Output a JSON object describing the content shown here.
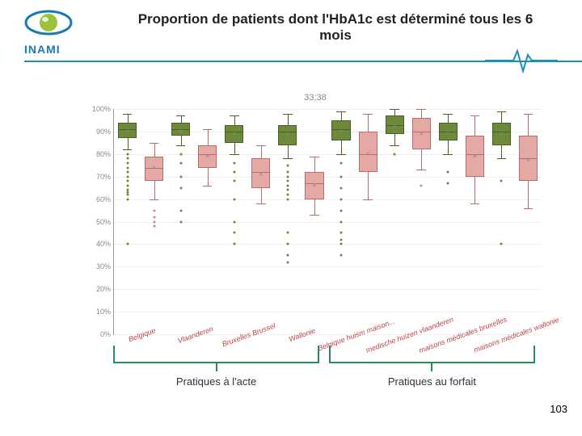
{
  "header": {
    "logo_text": "INAMI",
    "title": "Proportion de patients dont l'HbA1c est déterminé tous les 6 mois"
  },
  "chart": {
    "subtitle": "33;38",
    "type": "boxplot",
    "ylim": [
      0,
      100
    ],
    "ytick_step": 10,
    "ytick_suffix": "%",
    "background_color": "#ffffff",
    "grid_color": "#eeeeee",
    "axis_color": "#999999",
    "label_fontsize": 9,
    "label_color": "#bb4444",
    "colors": {
      "green_fill": "#6d8a3a",
      "green_border": "#4a5f26",
      "pink_fill": "#e4a9a4",
      "pink_border": "#b96b68",
      "outlier": "#6d8a3a",
      "outlier_pink": "#c88",
      "mean_marker": "#888888"
    },
    "categories": [
      "Belgique",
      "",
      "Vlaanderen",
      "",
      "Bruxelles Brussel",
      "",
      "Wallonie",
      "",
      "Belgique huism maison...",
      "",
      "medische huizen vlaanderen",
      "",
      "maisons médicales bruxelles",
      "",
      "maisons médicales wallonie",
      ""
    ],
    "series": [
      {
        "x": 0,
        "color": "green",
        "q1": 87,
        "median": 91,
        "q3": 94,
        "low": 82,
        "high": 98,
        "mean": 90,
        "outliers": [
          80,
          78,
          76,
          74,
          72,
          70,
          68,
          66,
          64,
          63,
          62,
          60,
          40
        ]
      },
      {
        "x": 1,
        "color": "pink",
        "q1": 68,
        "median": 74,
        "q3": 79,
        "low": 60,
        "high": 85,
        "mean": 74,
        "outliers": [
          55,
          52,
          50,
          48
        ]
      },
      {
        "x": 2,
        "color": "green",
        "q1": 88,
        "median": 91,
        "q3": 94,
        "low": 84,
        "high": 97,
        "mean": 90,
        "outliers": [
          80,
          76,
          70,
          65,
          55,
          50
        ]
      },
      {
        "x": 3,
        "color": "pink",
        "q1": 74,
        "median": 80,
        "q3": 84,
        "low": 66,
        "high": 91,
        "mean": 79,
        "outliers": []
      },
      {
        "x": 4,
        "color": "green",
        "q1": 85,
        "median": 90,
        "q3": 93,
        "low": 80,
        "high": 97,
        "mean": 89,
        "outliers": [
          76,
          72,
          68,
          60,
          50,
          45,
          40
        ]
      },
      {
        "x": 5,
        "color": "pink",
        "q1": 65,
        "median": 72,
        "q3": 78,
        "low": 58,
        "high": 84,
        "mean": 71,
        "outliers": []
      },
      {
        "x": 6,
        "color": "green",
        "q1": 84,
        "median": 90,
        "q3": 93,
        "low": 78,
        "high": 98,
        "mean": 88,
        "outliers": [
          75,
          72,
          70,
          68,
          66,
          64,
          62,
          60,
          45,
          40,
          35,
          32
        ]
      },
      {
        "x": 7,
        "color": "pink",
        "q1": 60,
        "median": 67,
        "q3": 72,
        "low": 53,
        "high": 79,
        "mean": 66,
        "outliers": []
      },
      {
        "x": 8,
        "color": "green",
        "q1": 86,
        "median": 91,
        "q3": 95,
        "low": 80,
        "high": 99,
        "mean": 90,
        "outliers": [
          76,
          70,
          65,
          60,
          55,
          50,
          45,
          42,
          40,
          35
        ]
      },
      {
        "x": 9,
        "color": "pink",
        "q1": 72,
        "median": 80,
        "q3": 90,
        "low": 60,
        "high": 98,
        "mean": 80,
        "outliers": []
      },
      {
        "x": 10,
        "color": "green",
        "q1": 89,
        "median": 93,
        "q3": 97,
        "low": 84,
        "high": 100,
        "mean": 92,
        "outliers": [
          80
        ]
      },
      {
        "x": 11,
        "color": "pink",
        "q1": 82,
        "median": 90,
        "q3": 96,
        "low": 73,
        "high": 100,
        "mean": 89,
        "outliers": [
          66
        ]
      },
      {
        "x": 12,
        "color": "green",
        "q1": 86,
        "median": 90,
        "q3": 94,
        "low": 80,
        "high": 98,
        "mean": 89,
        "outliers": [
          72,
          67
        ]
      },
      {
        "x": 13,
        "color": "pink",
        "q1": 70,
        "median": 80,
        "q3": 88,
        "low": 58,
        "high": 97,
        "mean": 79,
        "outliers": []
      },
      {
        "x": 14,
        "color": "green",
        "q1": 84,
        "median": 90,
        "q3": 94,
        "low": 78,
        "high": 99,
        "mean": 88,
        "outliers": [
          68,
          40
        ]
      },
      {
        "x": 15,
        "color": "pink",
        "q1": 68,
        "median": 78,
        "q3": 88,
        "low": 56,
        "high": 98,
        "mean": 77,
        "outliers": []
      }
    ]
  },
  "brackets": {
    "left": {
      "label": "Pratiques à l'acte"
    },
    "right": {
      "label": "Pratiques au forfait"
    }
  },
  "page_number": "103"
}
